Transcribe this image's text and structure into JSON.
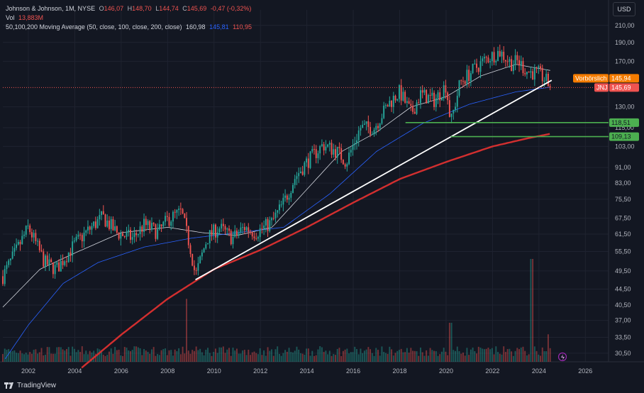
{
  "header": {
    "symbol_line": "Johnson & Johnson, 1M, NYSE",
    "ohlc": {
      "o_label": "O",
      "o": "146,07",
      "h_label": "H",
      "h": "148,70",
      "l_label": "L",
      "l": "144,74",
      "c_label": "C",
      "c": "145,69",
      "change": "-0,47 (-0,32%)"
    },
    "vol_label": "Vol",
    "vol_value": "13,883M",
    "ma_label": "50,100,200 Moving Average (50, close, 100, close, 200, close)",
    "ma_values": [
      "160,98",
      "145,81",
      "110,95"
    ]
  },
  "currency_button": "USD",
  "branding": "TradingView",
  "colors": {
    "bg": "#131722",
    "up": "#26a69a",
    "down": "#ef5350",
    "ma50": "#d1d4dc",
    "ma100": "#2962ff",
    "ma200": "#d32f2f",
    "green_level": "#4caf50",
    "orange": "#f57c00",
    "grid": "#1f2330"
  },
  "chart_data": {
    "type": "candlestick",
    "title": "Johnson & Johnson, 1M, NYSE",
    "y_scale": "log",
    "ylim": [
      29,
      230
    ],
    "xlim": [
      2000.9,
      2027.0
    ],
    "y_ticks": [
      "210,00",
      "190,00",
      "170,00",
      "130,00",
      "115,00",
      "103,00",
      "91,00",
      "83,00",
      "75,50",
      "67,50",
      "61,50",
      "55,50",
      "49,50",
      "44,50",
      "40,50",
      "37,00",
      "33,50",
      "30,50"
    ],
    "y_tick_values": [
      210,
      190,
      170,
      130,
      115,
      103,
      91,
      83,
      75.5,
      67.5,
      61.5,
      55.5,
      49.5,
      44.5,
      40.5,
      37,
      33.5,
      30.5
    ],
    "x_ticks": [
      "2002",
      "2004",
      "2006",
      "2008",
      "2010",
      "2012",
      "2014",
      "2016",
      "2018",
      "2020",
      "2022",
      "2024",
      "2026"
    ],
    "x_tick_values": [
      2002,
      2004,
      2006,
      2008,
      2010,
      2012,
      2014,
      2016,
      2018,
      2020,
      2022,
      2024,
      2026
    ],
    "price_anchors": [
      [
        2000.9,
        48
      ],
      [
        2001.5,
        56
      ],
      [
        2002.0,
        64
      ],
      [
        2002.7,
        52
      ],
      [
        2003.2,
        50
      ],
      [
        2004.0,
        58
      ],
      [
        2004.6,
        63
      ],
      [
        2005.2,
        68
      ],
      [
        2005.8,
        62
      ],
      [
        2006.5,
        60
      ],
      [
        2007.0,
        65
      ],
      [
        2007.6,
        62
      ],
      [
        2008.0,
        67
      ],
      [
        2008.6,
        70
      ],
      [
        2009.0,
        56
      ],
      [
        2009.2,
        48
      ],
      [
        2009.7,
        60
      ],
      [
        2010.2,
        64
      ],
      [
        2010.8,
        60
      ],
      [
        2011.3,
        64
      ],
      [
        2011.8,
        62
      ],
      [
        2012.5,
        66
      ],
      [
        2013.0,
        74
      ],
      [
        2013.5,
        86
      ],
      [
        2014.0,
        94
      ],
      [
        2014.7,
        104
      ],
      [
        2015.3,
        100
      ],
      [
        2015.7,
        94
      ],
      [
        2016.3,
        115
      ],
      [
        2016.9,
        115
      ],
      [
        2017.5,
        132
      ],
      [
        2018.0,
        142
      ],
      [
        2018.5,
        125
      ],
      [
        2018.9,
        140
      ],
      [
        2019.5,
        135
      ],
      [
        2020.0,
        148
      ],
      [
        2020.2,
        118
      ],
      [
        2020.6,
        150
      ],
      [
        2021.2,
        162
      ],
      [
        2021.7,
        172
      ],
      [
        2022.3,
        180
      ],
      [
        2022.8,
        168
      ],
      [
        2023.1,
        170
      ],
      [
        2023.5,
        160
      ],
      [
        2024.0,
        158
      ],
      [
        2024.3,
        152
      ],
      [
        2024.5,
        145.7
      ]
    ],
    "last_price": 145.69,
    "last_price_label": "145,69",
    "ticker": "JNJ",
    "preclose_label": "Vorbörslich",
    "preclose_value": "145,94",
    "support_levels": [
      {
        "value": 118.51,
        "label": "118,51"
      },
      {
        "value": 109.13,
        "label": "109,13"
      }
    ],
    "trend_line": {
      "start": [
        2009.2,
        47
      ],
      "end": [
        2024.55,
        152
      ]
    },
    "moving_averages": [
      {
        "name": "50",
        "value_label": "160,98",
        "anchors": [
          [
            2000.9,
            40
          ],
          [
            2002.5,
            50
          ],
          [
            2004.0,
            55
          ],
          [
            2006.0,
            62
          ],
          [
            2008.0,
            64
          ],
          [
            2009.5,
            62
          ],
          [
            2011.0,
            61
          ],
          [
            2012.5,
            64
          ],
          [
            2014.0,
            80
          ],
          [
            2015.5,
            100
          ],
          [
            2017.0,
            112
          ],
          [
            2018.5,
            130
          ],
          [
            2020.0,
            138
          ],
          [
            2021.5,
            156
          ],
          [
            2023.0,
            167
          ],
          [
            2024.5,
            161
          ]
        ]
      },
      {
        "name": "100",
        "value_label": "145,81",
        "anchors": [
          [
            2001.0,
            29.5
          ],
          [
            2002.0,
            36
          ],
          [
            2003.5,
            46
          ],
          [
            2005.0,
            52
          ],
          [
            2007.0,
            57
          ],
          [
            2009.0,
            60
          ],
          [
            2011.0,
            62
          ],
          [
            2013.0,
            64
          ],
          [
            2015.0,
            78
          ],
          [
            2017.0,
            100
          ],
          [
            2019.0,
            118
          ],
          [
            2021.0,
            132
          ],
          [
            2023.0,
            142
          ],
          [
            2024.5,
            146
          ]
        ]
      },
      {
        "name": "200",
        "value_label": "110,95",
        "anchors": [
          [
            2004.3,
            28
          ],
          [
            2006.0,
            34
          ],
          [
            2008.0,
            42
          ],
          [
            2010.0,
            50
          ],
          [
            2012.0,
            56
          ],
          [
            2014.0,
            64
          ],
          [
            2016.0,
            74
          ],
          [
            2018.0,
            85
          ],
          [
            2020.0,
            94
          ],
          [
            2022.0,
            103
          ],
          [
            2023.5,
            108
          ],
          [
            2024.5,
            111
          ]
        ]
      }
    ],
    "volume_spikes": [
      [
        2008.8,
        0.55
      ],
      [
        2020.2,
        0.28
      ],
      [
        2023.7,
        1.0
      ],
      [
        2024.4,
        0.15
      ]
    ]
  }
}
